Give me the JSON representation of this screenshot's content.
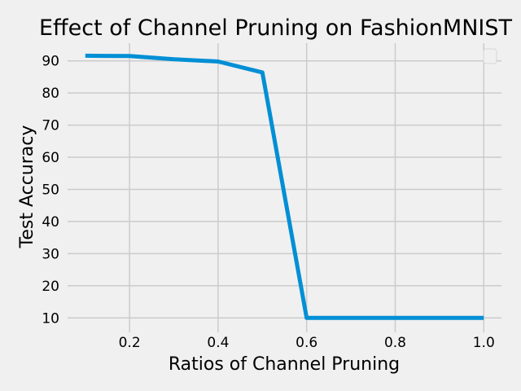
{
  "chart_data": {
    "type": "line",
    "title": "Effect of Channel Pruning on FashionMNIST",
    "xlabel": "Ratios of Channel Pruning",
    "ylabel": "Test Accuracy",
    "xlim": [
      0.06,
      1.04
    ],
    "ylim": [
      5.5,
      95.5
    ],
    "xticks": [
      0.2,
      0.4,
      0.6,
      0.8,
      1.0
    ],
    "xtick_labels": [
      "0.2",
      "0.4",
      "0.6",
      "0.8",
      "1.0"
    ],
    "yticks": [
      10,
      20,
      30,
      40,
      50,
      60,
      70,
      80,
      90
    ],
    "ytick_labels": [
      "10",
      "20",
      "30",
      "40",
      "50",
      "60",
      "70",
      "80",
      "90"
    ],
    "grid": true,
    "legend": "upper-right (empty)",
    "series": [
      {
        "color": "#008fd5",
        "x": [
          0.1,
          0.2,
          0.3,
          0.4,
          0.5,
          0.6,
          0.7,
          0.8,
          0.9,
          1.0
        ],
        "y": [
          91.6,
          91.5,
          90.5,
          89.8,
          86.4,
          10.0,
          10.0,
          10.0,
          10.0,
          10.0
        ]
      }
    ]
  }
}
